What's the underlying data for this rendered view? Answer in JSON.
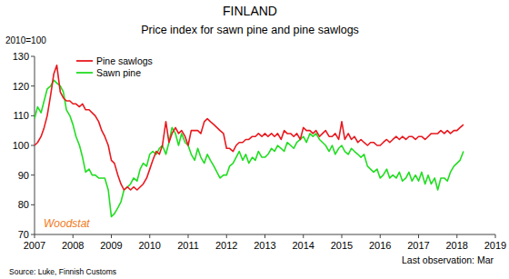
{
  "chart_data": {
    "type": "line",
    "title": "FINLAND",
    "subtitle": "Price index for sawn pine and pine sawlogs",
    "ylabel": "2010=100",
    "annotations": [
      "Woodstat",
      "Last observation: Mar"
    ],
    "source": "Source: Luke, Finnish Customs",
    "x": [
      2007,
      2007.08,
      2007.17,
      2007.25,
      2007.33,
      2007.42,
      2007.5,
      2007.58,
      2007.67,
      2007.75,
      2007.83,
      2007.92,
      2008,
      2008.08,
      2008.17,
      2008.25,
      2008.33,
      2008.42,
      2008.5,
      2008.58,
      2008.67,
      2008.75,
      2008.83,
      2008.92,
      2009,
      2009.08,
      2009.17,
      2009.25,
      2009.33,
      2009.42,
      2009.5,
      2009.58,
      2009.67,
      2009.75,
      2009.83,
      2009.92,
      2010,
      2010.08,
      2010.17,
      2010.25,
      2010.33,
      2010.42,
      2010.5,
      2010.58,
      2010.67,
      2010.75,
      2010.83,
      2010.92,
      2011,
      2011.08,
      2011.17,
      2011.25,
      2011.33,
      2011.42,
      2011.5,
      2011.58,
      2011.67,
      2011.75,
      2011.83,
      2011.92,
      2012,
      2012.08,
      2012.17,
      2012.25,
      2012.33,
      2012.42,
      2012.5,
      2012.58,
      2012.67,
      2012.75,
      2012.83,
      2012.92,
      2013,
      2013.08,
      2013.17,
      2013.25,
      2013.33,
      2013.42,
      2013.5,
      2013.58,
      2013.67,
      2013.75,
      2013.83,
      2013.92,
      2014,
      2014.08,
      2014.17,
      2014.25,
      2014.33,
      2014.42,
      2014.5,
      2014.58,
      2014.67,
      2014.75,
      2014.83,
      2014.92,
      2015,
      2015.08,
      2015.17,
      2015.25,
      2015.33,
      2015.42,
      2015.5,
      2015.58,
      2015.67,
      2015.75,
      2015.83,
      2015.92,
      2016,
      2016.08,
      2016.17,
      2016.25,
      2016.33,
      2016.42,
      2016.5,
      2016.58,
      2016.67,
      2016.75,
      2016.83,
      2016.92,
      2017,
      2017.08,
      2017.17,
      2017.25,
      2017.33,
      2017.42,
      2017.5,
      2017.58,
      2017.67,
      2017.75,
      2017.83,
      2017.92,
      2018,
      2018.08,
      2018.17
    ],
    "series": [
      {
        "name": "Pine sawlogs",
        "color": "#e8191f",
        "values": [
          100,
          101,
          103,
          106,
          110,
          117,
          124,
          127,
          118,
          116,
          115,
          115,
          114,
          114,
          113,
          114,
          112,
          112,
          111,
          110,
          108,
          105,
          103,
          100,
          95,
          94,
          90,
          87,
          85,
          86,
          85,
          86,
          85,
          86,
          87,
          89,
          92,
          95,
          98,
          97,
          100,
          108,
          101,
          104,
          106,
          104,
          105,
          103,
          100,
          105,
          105,
          105,
          104,
          108,
          109,
          108,
          107,
          106,
          105,
          104,
          99,
          99,
          98,
          100,
          101,
          101,
          102,
          102,
          103,
          103,
          104,
          103,
          104,
          103,
          104,
          103,
          104,
          102,
          105,
          104,
          104,
          103,
          104,
          102,
          106,
          105,
          105,
          104,
          105,
          103,
          104,
          105,
          103,
          103,
          104,
          102,
          108,
          102,
          104,
          102,
          103,
          101,
          102,
          101,
          100,
          101,
          101,
          100,
          100,
          101,
          102,
          101,
          102,
          103,
          102,
          103,
          102,
          103,
          103,
          102,
          103,
          103,
          102,
          103,
          104,
          104,
          104,
          105,
          104,
          105,
          104,
          105,
          105,
          106,
          107
        ]
      },
      {
        "name": "Sawn pine",
        "color": "#22dd22",
        "values": [
          109,
          113,
          111,
          115,
          119,
          120,
          122,
          121,
          120,
          118,
          112,
          110,
          107,
          103,
          100,
          96,
          91,
          92,
          90,
          90,
          89,
          89,
          89,
          85,
          76,
          77,
          79,
          81,
          85,
          86,
          87,
          89,
          88,
          92,
          94,
          93,
          97,
          98,
          97,
          99,
          100,
          97,
          101,
          106,
          104,
          100,
          104,
          101,
          100,
          97,
          95,
          99,
          96,
          94,
          97,
          95,
          93,
          91,
          89,
          90,
          90,
          93,
          94,
          96,
          98,
          95,
          97,
          94,
          96,
          95,
          98,
          96,
          96,
          97,
          99,
          98,
          100,
          99,
          98,
          101,
          100,
          99,
          101,
          102,
          103,
          101,
          104,
          103,
          104,
          102,
          101,
          100,
          98,
          100,
          97,
          99,
          100,
          98,
          97,
          99,
          98,
          97,
          96,
          97,
          93,
          92,
          91,
          92,
          89,
          90,
          92,
          89,
          90,
          89,
          91,
          88,
          89,
          91,
          88,
          90,
          88,
          91,
          87,
          90,
          87,
          89,
          85,
          89,
          89,
          88,
          91,
          93,
          94,
          95,
          98
        ]
      }
    ],
    "xlim": [
      2007,
      2019
    ],
    "xticks": [
      2007,
      2008,
      2009,
      2010,
      2011,
      2012,
      2013,
      2014,
      2015,
      2016,
      2017,
      2018,
      2019
    ],
    "ylim": [
      70,
      130
    ],
    "yticks": [
      70,
      80,
      90,
      100,
      110,
      120,
      130
    ],
    "grid": false,
    "legend": "upper-left"
  }
}
